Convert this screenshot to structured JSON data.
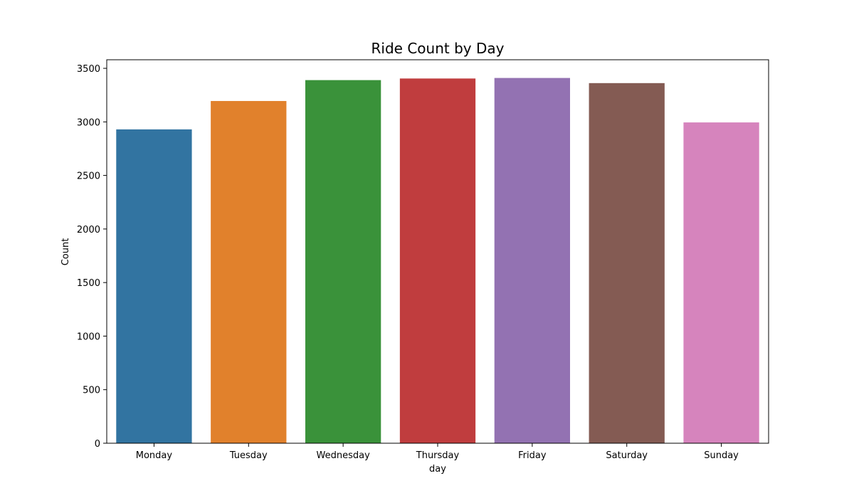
{
  "chart_data": {
    "type": "bar",
    "title": "Ride Count by Day",
    "xlabel": "day",
    "ylabel": "Count",
    "categories": [
      "Monday",
      "Tuesday",
      "Wednesday",
      "Thursday",
      "Friday",
      "Saturday",
      "Sunday"
    ],
    "values": [
      2930,
      3195,
      3390,
      3405,
      3410,
      3362,
      2995
    ],
    "colors": [
      "#3274a1",
      "#e1812c",
      "#3a923a",
      "#c03d3e",
      "#9372b2",
      "#845b53",
      "#d684bd"
    ],
    "ylim": [
      0,
      3580
    ],
    "yticks": [
      0,
      500,
      1000,
      1500,
      2000,
      2500,
      3000,
      3500
    ],
    "grid": false,
    "legend": "none"
  }
}
